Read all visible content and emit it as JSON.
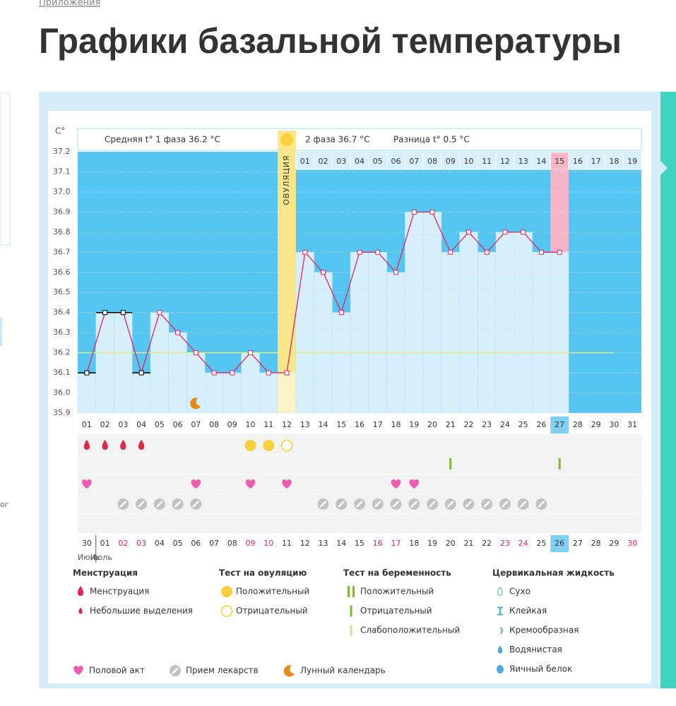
{
  "breadcrumb": "Приложения",
  "heading": "Графики базальной температуры",
  "side_fragment": "ог",
  "chart_data": {
    "type": "line",
    "unit": "C°",
    "phase1_text": "Средняя t° 1 фаза 36.2 °C",
    "phase2_text": "2 фаза 36.7 °C",
    "difference_text": "Разница t° 0.5 °C",
    "ovulation_label": "ОВУЛЯЦИЯ",
    "ovulation_day": 12,
    "today_day": 27,
    "categories": [
      "01",
      "02",
      "03",
      "04",
      "05",
      "06",
      "07",
      "08",
      "09",
      "10",
      "11",
      "12",
      "13",
      "14",
      "15",
      "16",
      "17",
      "18",
      "19",
      "20",
      "21",
      "22",
      "23",
      "24",
      "25",
      "26",
      "27",
      "28",
      "29",
      "30",
      "31"
    ],
    "values": [
      36.1,
      36.4,
      36.4,
      36.1,
      36.4,
      36.3,
      36.2,
      36.1,
      36.1,
      36.2,
      36.1,
      36.1,
      36.7,
      36.6,
      36.4,
      36.7,
      36.7,
      36.6,
      36.9,
      36.9,
      36.7,
      36.8,
      36.7,
      36.8,
      36.8,
      36.7,
      36.7,
      null,
      null,
      null,
      null
    ],
    "color": "#e3245f",
    "coverline": 36.2,
    "coverline_color": "#f3ee6a",
    "phase2_days": [
      "01",
      "02",
      "03",
      "04",
      "05",
      "06",
      "07",
      "08",
      "09",
      "10",
      "11",
      "12",
      "13",
      "14",
      "15",
      "16",
      "17",
      "18",
      "19"
    ],
    "dates": [
      "30",
      "01",
      "02",
      "03",
      "04",
      "05",
      "06",
      "07",
      "08",
      "09",
      "10",
      "11",
      "12",
      "13",
      "14",
      "15",
      "16",
      "17",
      "18",
      "19",
      "20",
      "21",
      "22",
      "23",
      "24",
      "25",
      "26",
      "27",
      "28",
      "29",
      "30"
    ],
    "weekend_days": [
      3,
      4,
      10,
      11,
      17,
      18,
      24,
      25,
      31
    ],
    "weekend_color": "#e3245f",
    "months": [
      "Июнь",
      "Июль"
    ],
    "ylim": [
      35.9,
      37.2
    ],
    "yticks": [
      35.9,
      {
        "value": 36,
        "label": "36.0"
      },
      36.1,
      36.2,
      36.3,
      36.4,
      36.5,
      36.6,
      36.7,
      36.8,
      36.9,
      {
        "value": 37,
        "label": "37.0"
      },
      37.1,
      37.2
    ],
    "grid": true,
    "legend": [
      {
        "title": "Менструация",
        "items": [
          {
            "label": "Менструация",
            "color": "#e0284a",
            "days": [
              1,
              2,
              3,
              4
            ]
          },
          {
            "label": "Небольшие выделения",
            "color": "#e0284a"
          }
        ]
      },
      {
        "title": "Тест на овуляцию",
        "items": [
          {
            "label": "Положительный",
            "color": "#f9cf3a",
            "days": [
              10,
              11
            ]
          },
          {
            "label": "Отрицательный",
            "color": "#f9cf3a",
            "days": [
              12
            ]
          }
        ]
      },
      {
        "title": "Тест на беременность",
        "items": [
          {
            "label": "Положительный",
            "color": "#7dbb2e"
          },
          {
            "label": "Отрицательный",
            "color": "#7dbb2e",
            "days": [
              21,
              27
            ]
          },
          {
            "label": "Слабоположительный",
            "color": "#c5e29a"
          }
        ]
      },
      {
        "title": "Цервикальная жидкость",
        "items": [
          {
            "label": "Сухо",
            "color": "#4fa9e6"
          },
          {
            "label": "Клейкая",
            "color": "#4fa9e6"
          },
          {
            "label": "Кремообразная",
            "color": "#4fa9e6"
          },
          {
            "label": "Водянистая",
            "color": "#4fa9e6"
          },
          {
            "label": "Яичный белок",
            "color": "#4fa9e6"
          }
        ]
      }
    ],
    "extras": [
      {
        "label": "Половой акт",
        "color": "#f05bb0",
        "days": [
          1,
          7,
          10,
          12,
          18,
          19
        ]
      },
      {
        "label": "Прием лекарств",
        "color": "#c2c2c2",
        "days": [
          3,
          4,
          5,
          6,
          7,
          14,
          15,
          16,
          17,
          18,
          19,
          20,
          21,
          22,
          23,
          24,
          25,
          26
        ]
      },
      {
        "label": "Лунный календарь",
        "color": "#e8891a",
        "days": [
          7
        ]
      }
    ]
  }
}
